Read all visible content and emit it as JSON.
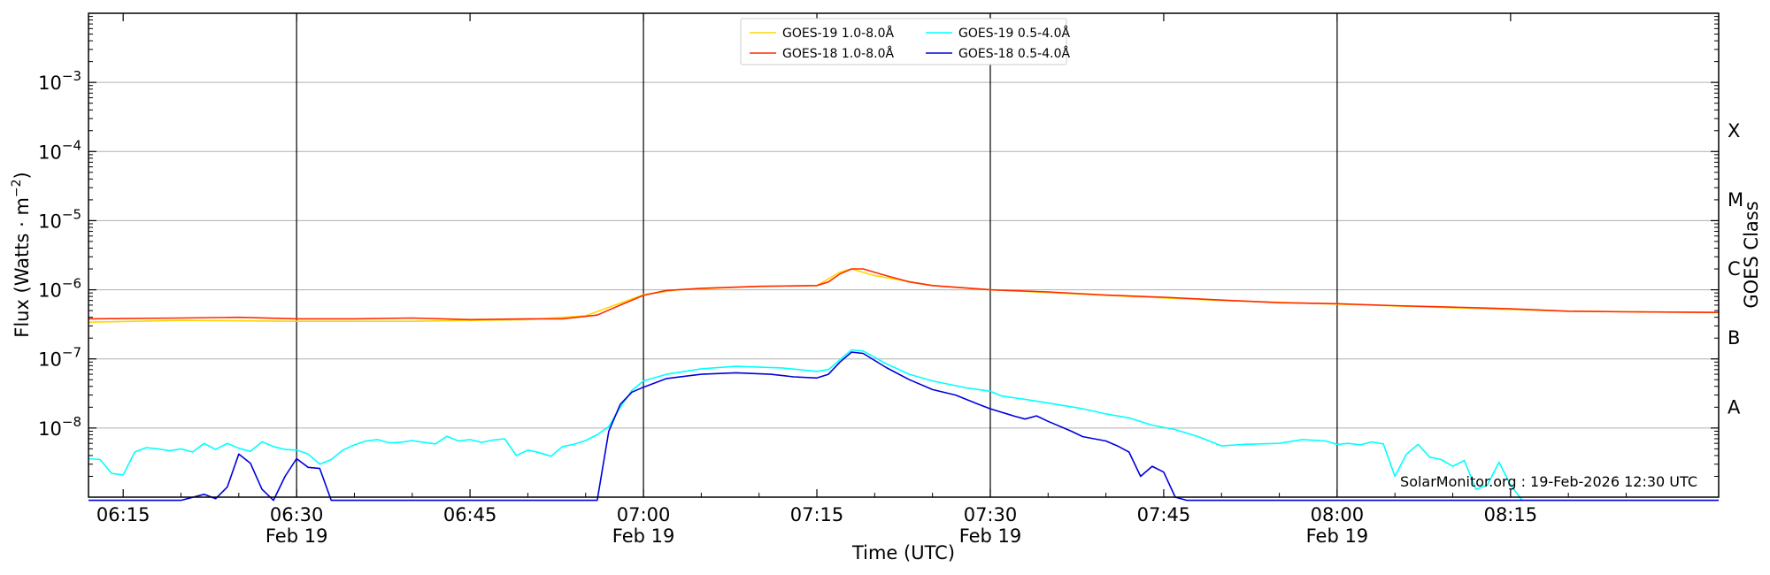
{
  "chart_data": {
    "type": "line",
    "xlabel": "Time (UTC)",
    "ylabel": "Flux (Watts · m",
    "ylabel_sup": "−2",
    "ylabel_close": ")",
    "right_label": "GOES Class",
    "credit": "SolarMonitor.org : 19-Feb-2026 12:30 UTC",
    "yscale": "log",
    "ylim": [
      1e-09,
      0.01
    ],
    "xlim": [
      "06:12",
      "08:33"
    ],
    "ytick_labels": [
      {
        "exp": -8,
        "base": "10",
        "sup": "−8"
      },
      {
        "exp": -7,
        "base": "10",
        "sup": "−7"
      },
      {
        "exp": -6,
        "base": "10",
        "sup": "−6"
      },
      {
        "exp": -5,
        "base": "10",
        "sup": "−5"
      },
      {
        "exp": -4,
        "base": "10",
        "sup": "−4"
      },
      {
        "exp": -3,
        "base": "10",
        "sup": "−3"
      }
    ],
    "xticks": [
      {
        "time": "06:15",
        "label": "06:15",
        "sub": ""
      },
      {
        "time": "06:30",
        "label": "06:30",
        "sub": "Feb 19"
      },
      {
        "time": "06:45",
        "label": "06:45",
        "sub": ""
      },
      {
        "time": "07:00",
        "label": "07:00",
        "sub": "Feb 19"
      },
      {
        "time": "07:15",
        "label": "07:15",
        "sub": ""
      },
      {
        "time": "07:30",
        "label": "07:30",
        "sub": "Feb 19"
      },
      {
        "time": "07:45",
        "label": "07:45",
        "sub": ""
      },
      {
        "time": "08:00",
        "label": "08:00",
        "sub": "Feb 19"
      },
      {
        "time": "08:15",
        "label": "08:15",
        "sub": ""
      }
    ],
    "vlines": [
      "06:30",
      "07:00",
      "07:30",
      "08:00"
    ],
    "goes_classes": [
      {
        "label": "A",
        "flux": 2e-08
      },
      {
        "label": "B",
        "flux": 2e-07
      },
      {
        "label": "C",
        "flux": 2e-06
      },
      {
        "label": "M",
        "flux": 2e-05
      },
      {
        "label": "X",
        "flux": 0.0002
      }
    ],
    "grid": true,
    "legend_position": "top-center",
    "series": [
      {
        "name": "GOES-19 1.0-8.0Å",
        "color": "#ffd700",
        "points": [
          [
            "06:12",
            3.4e-07
          ],
          [
            "06:20",
            3.6e-07
          ],
          [
            "06:30",
            3.5e-07
          ],
          [
            "06:40",
            3.5e-07
          ],
          [
            "06:50",
            3.7e-07
          ],
          [
            "06:55",
            4.2e-07
          ],
          [
            "07:00",
            8.5e-07
          ],
          [
            "07:03",
            1e-06
          ],
          [
            "07:10",
            1.12e-06
          ],
          [
            "07:15",
            1.15e-06
          ],
          [
            "07:17",
            1.8e-06
          ],
          [
            "07:18",
            2e-06
          ],
          [
            "07:20",
            1.6e-06
          ],
          [
            "07:25",
            1.15e-06
          ],
          [
            "07:30",
            1e-06
          ],
          [
            "07:40",
            8.3e-07
          ],
          [
            "07:50",
            7e-07
          ],
          [
            "08:00",
            6.2e-07
          ],
          [
            "08:10",
            5.5e-07
          ],
          [
            "08:20",
            4.9e-07
          ],
          [
            "08:33",
            4.7e-07
          ]
        ]
      },
      {
        "name": "GOES-18 1.0-8.0Å",
        "color": "#ff2a00",
        "points": [
          [
            "06:12",
            3.8e-07
          ],
          [
            "06:20",
            3.9e-07
          ],
          [
            "06:25",
            4e-07
          ],
          [
            "06:30",
            3.8e-07
          ],
          [
            "06:35",
            3.8e-07
          ],
          [
            "06:40",
            3.9e-07
          ],
          [
            "06:45",
            3.7e-07
          ],
          [
            "06:50",
            3.8e-07
          ],
          [
            "06:53",
            3.8e-07
          ],
          [
            "06:56",
            4.3e-07
          ],
          [
            "06:58",
            6e-07
          ],
          [
            "07:00",
            8.3e-07
          ],
          [
            "07:02",
            9.8e-07
          ],
          [
            "07:05",
            1.05e-06
          ],
          [
            "07:10",
            1.12e-06
          ],
          [
            "07:15",
            1.15e-06
          ],
          [
            "07:16",
            1.3e-06
          ],
          [
            "07:17",
            1.7e-06
          ],
          [
            "07:18",
            2e-06
          ],
          [
            "07:19",
            2e-06
          ],
          [
            "07:21",
            1.6e-06
          ],
          [
            "07:23",
            1.3e-06
          ],
          [
            "07:25",
            1.15e-06
          ],
          [
            "07:30",
            1e-06
          ],
          [
            "07:35",
            9.3e-07
          ],
          [
            "07:40",
            8.4e-07
          ],
          [
            "07:45",
            7.8e-07
          ],
          [
            "07:50",
            7.1e-07
          ],
          [
            "07:55",
            6.5e-07
          ],
          [
            "08:00",
            6.3e-07
          ],
          [
            "08:05",
            5.9e-07
          ],
          [
            "08:10",
            5.6e-07
          ],
          [
            "08:15",
            5.3e-07
          ],
          [
            "08:20",
            4.9e-07
          ],
          [
            "08:25",
            4.8e-07
          ],
          [
            "08:33",
            4.7e-07
          ]
        ]
      },
      {
        "name": "GOES-19 0.5-4.0Å",
        "color": "#00ffff",
        "points": [
          [
            "06:12",
            3.6e-09
          ],
          [
            "06:13",
            3.5e-09
          ],
          [
            "06:14",
            2.2e-09
          ],
          [
            "06:15",
            2.1e-09
          ],
          [
            "06:16",
            4.5e-09
          ],
          [
            "06:17",
            5.2e-09
          ],
          [
            "06:18",
            5e-09
          ],
          [
            "06:19",
            4.7e-09
          ],
          [
            "06:20",
            5e-09
          ],
          [
            "06:21",
            4.5e-09
          ],
          [
            "06:22",
            6e-09
          ],
          [
            "06:23",
            4.9e-09
          ],
          [
            "06:24",
            6e-09
          ],
          [
            "06:25",
            5.1e-09
          ],
          [
            "06:26",
            4.6e-09
          ],
          [
            "06:27",
            6.3e-09
          ],
          [
            "06:28",
            5.4e-09
          ],
          [
            "06:29",
            4.9e-09
          ],
          [
            "06:30",
            4.8e-09
          ],
          [
            "06:31",
            4.2e-09
          ],
          [
            "06:32",
            3e-09
          ],
          [
            "06:33",
            3.5e-09
          ],
          [
            "06:34",
            4.8e-09
          ],
          [
            "06:35",
            5.7e-09
          ],
          [
            "06:36",
            6.5e-09
          ],
          [
            "06:37",
            6.8e-09
          ],
          [
            "06:38",
            6.1e-09
          ],
          [
            "06:39",
            6.2e-09
          ],
          [
            "06:40",
            6.6e-09
          ],
          [
            "06:41",
            6.2e-09
          ],
          [
            "06:42",
            5.9e-09
          ],
          [
            "06:43",
            7.6e-09
          ],
          [
            "06:44",
            6.5e-09
          ],
          [
            "06:45",
            6.8e-09
          ],
          [
            "06:46",
            6.2e-09
          ],
          [
            "06:47",
            6.7e-09
          ],
          [
            "06:48",
            7e-09
          ],
          [
            "06:49",
            4e-09
          ],
          [
            "06:50",
            4.8e-09
          ],
          [
            "06:51",
            4.4e-09
          ],
          [
            "06:52",
            3.9e-09
          ],
          [
            "06:53",
            5.4e-09
          ],
          [
            "06:54",
            5.8e-09
          ],
          [
            "06:55",
            6.6e-09
          ],
          [
            "06:56",
            8e-09
          ],
          [
            "06:57",
            1.05e-08
          ],
          [
            "06:58",
            2e-08
          ],
          [
            "06:59",
            3.5e-08
          ],
          [
            "07:00",
            4.8e-08
          ],
          [
            "07:02",
            6e-08
          ],
          [
            "07:05",
            7.2e-08
          ],
          [
            "07:08",
            7.8e-08
          ],
          [
            "07:12",
            7.4e-08
          ],
          [
            "07:15",
            6.6e-08
          ],
          [
            "07:16",
            7e-08
          ],
          [
            "07:18",
            1.35e-07
          ],
          [
            "07:19",
            1.3e-07
          ],
          [
            "07:21",
            8.5e-08
          ],
          [
            "07:23",
            6e-08
          ],
          [
            "07:25",
            4.8e-08
          ],
          [
            "07:28",
            3.8e-08
          ],
          [
            "07:30",
            3.4e-08
          ],
          [
            "07:31",
            2.9e-08
          ],
          [
            "07:33",
            2.6e-08
          ],
          [
            "07:35",
            2.3e-08
          ],
          [
            "07:38",
            1.9e-08
          ],
          [
            "07:40",
            1.6e-08
          ],
          [
            "07:42",
            1.4e-08
          ],
          [
            "07:44",
            1.1e-08
          ],
          [
            "07:46",
            9.5e-09
          ],
          [
            "07:48",
            7.5e-09
          ],
          [
            "07:50",
            5.5e-09
          ],
          [
            "07:52",
            5.8e-09
          ],
          [
            "07:55",
            6e-09
          ],
          [
            "07:57",
            6.8e-09
          ],
          [
            "07:59",
            6.5e-09
          ],
          [
            "08:00",
            5.8e-09
          ],
          [
            "08:01",
            6e-09
          ],
          [
            "08:02",
            5.7e-09
          ],
          [
            "08:03",
            6.3e-09
          ],
          [
            "08:04",
            5.9e-09
          ],
          [
            "08:05",
            2e-09
          ],
          [
            "08:06",
            4.2e-09
          ],
          [
            "08:07",
            5.8e-09
          ],
          [
            "08:08",
            3.8e-09
          ],
          [
            "08:09",
            3.5e-09
          ],
          [
            "08:10",
            2.8e-09
          ],
          [
            "08:11",
            3.4e-09
          ],
          [
            "08:12",
            1.3e-09
          ],
          [
            "08:13",
            1.5e-09
          ],
          [
            "08:14",
            3.2e-09
          ],
          [
            "08:15",
            1.5e-09
          ],
          [
            "08:16",
            9e-10
          ]
        ]
      },
      {
        "name": "GOES-18 0.5-4.0Å",
        "color": "#0000dd",
        "points": [
          [
            "06:12",
            9e-10
          ],
          [
            "06:13",
            9e-10
          ],
          [
            "06:20",
            9e-10
          ],
          [
            "06:22",
            1.1e-09
          ],
          [
            "06:23",
            9.5e-10
          ],
          [
            "06:24",
            1.4e-09
          ],
          [
            "06:25",
            4.2e-09
          ],
          [
            "06:26",
            3.1e-09
          ],
          [
            "06:27",
            1.3e-09
          ],
          [
            "06:28",
            9e-10
          ],
          [
            "06:29",
            2e-09
          ],
          [
            "06:30",
            3.6e-09
          ],
          [
            "06:31",
            2.7e-09
          ],
          [
            "06:32",
            2.6e-09
          ],
          [
            "06:33",
            9e-10
          ],
          [
            "06:55",
            9e-10
          ],
          [
            "06:56",
            9e-10
          ],
          [
            "06:57",
            9e-09
          ],
          [
            "06:58",
            2.2e-08
          ],
          [
            "06:59",
            3.3e-08
          ],
          [
            "07:00",
            3.9e-08
          ],
          [
            "07:02",
            5.2e-08
          ],
          [
            "07:05",
            6e-08
          ],
          [
            "07:08",
            6.3e-08
          ],
          [
            "07:11",
            6e-08
          ],
          [
            "07:13",
            5.5e-08
          ],
          [
            "07:15",
            5.3e-08
          ],
          [
            "07:16",
            6e-08
          ],
          [
            "07:17",
            9e-08
          ],
          [
            "07:18",
            1.25e-07
          ],
          [
            "07:19",
            1.2e-07
          ],
          [
            "07:21",
            7.5e-08
          ],
          [
            "07:23",
            5e-08
          ],
          [
            "07:25",
            3.6e-08
          ],
          [
            "07:27",
            3e-08
          ],
          [
            "07:29",
            2.2e-08
          ],
          [
            "07:30",
            1.9e-08
          ],
          [
            "07:32",
            1.5e-08
          ],
          [
            "07:33",
            1.35e-08
          ],
          [
            "07:34",
            1.5e-08
          ],
          [
            "07:35",
            1.25e-08
          ],
          [
            "07:37",
            9e-09
          ],
          [
            "07:38",
            7.5e-09
          ],
          [
            "07:40",
            6.5e-09
          ],
          [
            "07:41",
            5.5e-09
          ],
          [
            "07:42",
            4.5e-09
          ],
          [
            "07:43",
            2e-09
          ],
          [
            "07:44",
            2.8e-09
          ],
          [
            "07:45",
            2.3e-09
          ],
          [
            "07:46",
            1e-09
          ],
          [
            "07:47",
            9e-10
          ],
          [
            "08:33",
            9e-10
          ]
        ]
      }
    ]
  }
}
